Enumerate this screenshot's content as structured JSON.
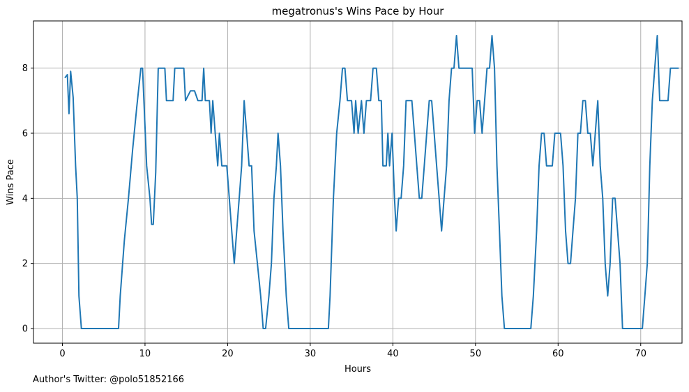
{
  "chart_data": {
    "type": "line",
    "title": "megatronus's Wins Pace by Hour",
    "xlabel": "Hours",
    "ylabel": "Wins Pace",
    "xlim": [
      -3.5,
      75
    ],
    "ylim": [
      -0.45,
      9.45
    ],
    "xticks": [
      0,
      10,
      20,
      30,
      40,
      50,
      60,
      70
    ],
    "yticks": [
      0,
      2,
      4,
      6,
      8
    ],
    "grid": true,
    "series": [
      {
        "color": "#1f77b4",
        "points": [
          [
            0.3,
            7.7
          ],
          [
            0.6,
            7.8
          ],
          [
            0.8,
            6.6
          ],
          [
            1.0,
            7.9
          ],
          [
            1.3,
            7.1
          ],
          [
            1.6,
            5.0
          ],
          [
            1.8,
            4.0
          ],
          [
            2.0,
            1.0
          ],
          [
            2.3,
            0
          ],
          [
            6.8,
            0
          ],
          [
            7.0,
            1.0
          ],
          [
            7.5,
            2.7
          ],
          [
            8.0,
            4.0
          ],
          [
            8.5,
            5.5
          ],
          [
            9.0,
            6.8
          ],
          [
            9.5,
            8.0
          ],
          [
            9.7,
            8.0
          ],
          [
            10.2,
            5.0
          ],
          [
            10.6,
            4.0
          ],
          [
            10.8,
            3.2
          ],
          [
            11.0,
            3.2
          ],
          [
            11.3,
            4.8
          ],
          [
            11.6,
            8.0
          ],
          [
            12.0,
            8.0
          ],
          [
            12.4,
            8.0
          ],
          [
            12.6,
            7.0
          ],
          [
            13.0,
            7.0
          ],
          [
            13.4,
            7.0
          ],
          [
            13.6,
            8.0
          ],
          [
            14.0,
            8.0
          ],
          [
            14.4,
            8.0
          ],
          [
            14.7,
            8.0
          ],
          [
            14.9,
            7.0
          ],
          [
            15.5,
            7.3
          ],
          [
            16.0,
            7.3
          ],
          [
            16.4,
            7.0
          ],
          [
            16.9,
            7.0
          ],
          [
            17.1,
            8.0
          ],
          [
            17.3,
            7.0
          ],
          [
            17.8,
            7.0
          ],
          [
            18.0,
            6.0
          ],
          [
            18.2,
            7.0
          ],
          [
            18.5,
            6.0
          ],
          [
            18.8,
            5.0
          ],
          [
            19.0,
            6.0
          ],
          [
            19.3,
            5.0
          ],
          [
            19.9,
            5.0
          ],
          [
            20.2,
            4.0
          ],
          [
            20.5,
            3.0
          ],
          [
            20.8,
            2.0
          ],
          [
            21.1,
            3.0
          ],
          [
            21.4,
            4.0
          ],
          [
            21.7,
            5.0
          ],
          [
            22.0,
            7.0
          ],
          [
            22.3,
            6.0
          ],
          [
            22.6,
            5.0
          ],
          [
            22.9,
            5.0
          ],
          [
            23.2,
            3.0
          ],
          [
            23.6,
            2.0
          ],
          [
            24.0,
            1.0
          ],
          [
            24.3,
            0
          ],
          [
            24.6,
            0
          ],
          [
            25.0,
            1.0
          ],
          [
            25.3,
            2.0
          ],
          [
            25.6,
            4.0
          ],
          [
            25.9,
            5.0
          ],
          [
            26.1,
            6.0
          ],
          [
            26.4,
            5.0
          ],
          [
            26.7,
            3.0
          ],
          [
            26.9,
            2.0
          ],
          [
            27.1,
            1.0
          ],
          [
            27.4,
            0
          ],
          [
            32.2,
            0
          ],
          [
            32.4,
            1.0
          ],
          [
            32.8,
            4.0
          ],
          [
            33.2,
            6.0
          ],
          [
            33.6,
            7.0
          ],
          [
            33.9,
            8.0
          ],
          [
            34.2,
            8.0
          ],
          [
            34.5,
            7.0
          ],
          [
            35.0,
            7.0
          ],
          [
            35.3,
            6.0
          ],
          [
            35.5,
            7.0
          ],
          [
            35.8,
            6.0
          ],
          [
            36.2,
            7.0
          ],
          [
            36.5,
            6.0
          ],
          [
            36.8,
            7.0
          ],
          [
            37.3,
            7.0
          ],
          [
            37.6,
            8.0
          ],
          [
            38.0,
            8.0
          ],
          [
            38.3,
            7.0
          ],
          [
            38.6,
            7.0
          ],
          [
            38.8,
            5.0
          ],
          [
            39.2,
            5.0
          ],
          [
            39.4,
            6.0
          ],
          [
            39.6,
            5.0
          ],
          [
            39.9,
            6.0
          ],
          [
            40.2,
            4.0
          ],
          [
            40.4,
            3.0
          ],
          [
            40.7,
            4.0
          ],
          [
            41.0,
            4.0
          ],
          [
            41.3,
            5.0
          ],
          [
            41.6,
            7.0
          ],
          [
            42.0,
            7.0
          ],
          [
            42.3,
            7.0
          ],
          [
            42.6,
            6.0
          ],
          [
            42.9,
            5.0
          ],
          [
            43.2,
            4.0
          ],
          [
            43.5,
            4.0
          ],
          [
            43.8,
            5.0
          ],
          [
            44.1,
            6.0
          ],
          [
            44.4,
            7.0
          ],
          [
            44.7,
            7.0
          ],
          [
            45.0,
            6.0
          ],
          [
            45.3,
            5.0
          ],
          [
            45.6,
            4.0
          ],
          [
            45.9,
            3.0
          ],
          [
            46.2,
            4.0
          ],
          [
            46.5,
            5.0
          ],
          [
            46.8,
            7.0
          ],
          [
            47.1,
            8.0
          ],
          [
            47.4,
            8.0
          ],
          [
            47.7,
            9.0
          ],
          [
            48.0,
            8.0
          ],
          [
            48.4,
            8.0
          ],
          [
            48.8,
            8.0
          ],
          [
            49.2,
            8.0
          ],
          [
            49.6,
            8.0
          ],
          [
            49.9,
            6.0
          ],
          [
            50.2,
            7.0
          ],
          [
            50.5,
            7.0
          ],
          [
            50.8,
            6.0
          ],
          [
            51.1,
            7.0
          ],
          [
            51.4,
            8.0
          ],
          [
            51.7,
            8.0
          ],
          [
            52.0,
            9.0
          ],
          [
            52.3,
            8.0
          ],
          [
            52.6,
            5.0
          ],
          [
            52.9,
            3.0
          ],
          [
            53.2,
            1.0
          ],
          [
            53.5,
            0
          ],
          [
            56.7,
            0
          ],
          [
            57.0,
            1.0
          ],
          [
            57.4,
            3.0
          ],
          [
            57.7,
            5.0
          ],
          [
            58.0,
            6.0
          ],
          [
            58.3,
            6.0
          ],
          [
            58.6,
            5.0
          ],
          [
            59.0,
            5.0
          ],
          [
            59.3,
            5.0
          ],
          [
            59.6,
            6.0
          ],
          [
            60.0,
            6.0
          ],
          [
            60.3,
            6.0
          ],
          [
            60.6,
            5.0
          ],
          [
            60.9,
            3.0
          ],
          [
            61.2,
            2.0
          ],
          [
            61.5,
            2.0
          ],
          [
            61.8,
            3.0
          ],
          [
            62.1,
            4.0
          ],
          [
            62.4,
            6.0
          ],
          [
            62.7,
            6.0
          ],
          [
            63.0,
            7.0
          ],
          [
            63.3,
            7.0
          ],
          [
            63.6,
            6.0
          ],
          [
            63.9,
            6.0
          ],
          [
            64.2,
            5.0
          ],
          [
            64.5,
            6.0
          ],
          [
            64.8,
            7.0
          ],
          [
            65.1,
            5.0
          ],
          [
            65.4,
            4.0
          ],
          [
            65.7,
            2.0
          ],
          [
            66.0,
            1.0
          ],
          [
            66.3,
            2.0
          ],
          [
            66.6,
            4.0
          ],
          [
            66.9,
            4.0
          ],
          [
            67.2,
            3.0
          ],
          [
            67.5,
            2.0
          ],
          [
            67.8,
            0
          ],
          [
            70.2,
            0
          ],
          [
            70.5,
            1.0
          ],
          [
            70.8,
            2.0
          ],
          [
            71.1,
            5.0
          ],
          [
            71.4,
            7.0
          ],
          [
            71.7,
            8.0
          ],
          [
            72.0,
            9.0
          ],
          [
            72.3,
            7.0
          ],
          [
            72.8,
            7.0
          ],
          [
            73.3,
            7.0
          ],
          [
            73.6,
            8.0
          ],
          [
            74.0,
            8.0
          ],
          [
            74.6,
            8.0
          ]
        ]
      }
    ],
    "footer": "Author's Twitter: @polo51852166"
  }
}
